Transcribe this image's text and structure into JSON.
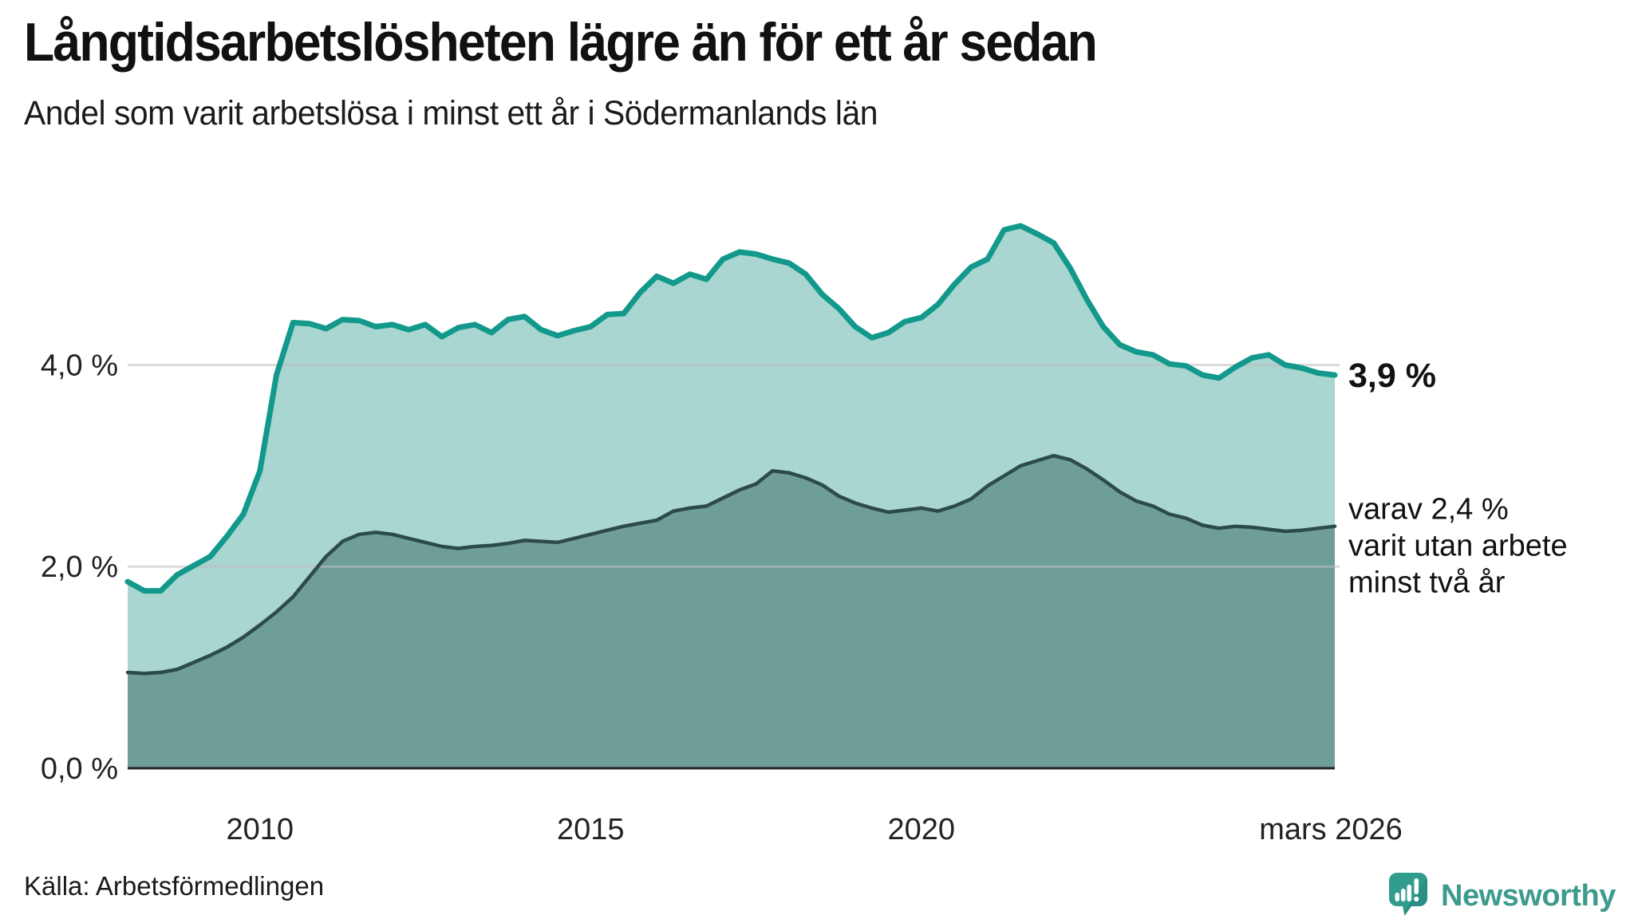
{
  "title": "Långtidsarbetslösheten lägre än för ett år sedan",
  "subtitle": "Andel som varit arbetslösa i minst ett år i Södermanlands län",
  "source": "Källa: Arbetsförmedlingen",
  "branding": {
    "name": "Newsworthy",
    "color": "#3c9b8d",
    "icon": "newsworthy-speech-bubble-bar-chart-icon"
  },
  "annotations": {
    "end_value_label": "3,9 %",
    "secondary_lines": [
      "varav 2,4 %",
      "varit utan arbete",
      "minst två år"
    ]
  },
  "colors": {
    "series1_line": "#12998b",
    "series1_fill": "#a9d6d0",
    "series2_line": "#2d4b48",
    "series2_fill": "#6f9e99",
    "gridline": "#bebebe",
    "axis": "#222222",
    "background": "#ffffff"
  },
  "chart_data": {
    "type": "area",
    "title": "Långtidsarbetslösheten lägre än för ett år sedan",
    "subtitle": "Andel som varit arbetslösa i minst ett år i Södermanlands län",
    "xlabel": "",
    "ylabel": "",
    "grid": "horizontal",
    "legend": "none",
    "xlim": [
      2008.0,
      2026.25
    ],
    "ylim": [
      0,
      5.8
    ],
    "x_unit": "year",
    "y_unit": "percent",
    "xticks": [
      {
        "v": 2010,
        "label": "2010"
      },
      {
        "v": 2015,
        "label": "2015"
      },
      {
        "v": 2020,
        "label": "2020"
      },
      {
        "v": 2026.19,
        "label": "mars 2026"
      }
    ],
    "yticks": [
      {
        "v": 0,
        "label": "0,0 %"
      },
      {
        "v": 2,
        "label": "2,0 %"
      },
      {
        "v": 4,
        "label": "4,0 %"
      }
    ],
    "x": [
      2008.0,
      2008.25,
      2008.5,
      2008.75,
      2009.0,
      2009.25,
      2009.5,
      2009.75,
      2010.0,
      2010.25,
      2010.5,
      2010.75,
      2011.0,
      2011.25,
      2011.5,
      2011.75,
      2012.0,
      2012.25,
      2012.5,
      2012.75,
      2013.0,
      2013.25,
      2013.5,
      2013.75,
      2014.0,
      2014.25,
      2014.5,
      2014.75,
      2015.0,
      2015.25,
      2015.5,
      2015.75,
      2016.0,
      2016.25,
      2016.5,
      2016.75,
      2017.0,
      2017.25,
      2017.5,
      2017.75,
      2018.0,
      2018.25,
      2018.5,
      2018.75,
      2019.0,
      2019.25,
      2019.5,
      2019.75,
      2020.0,
      2020.25,
      2020.5,
      2020.75,
      2021.0,
      2021.25,
      2021.5,
      2021.75,
      2022.0,
      2022.25,
      2022.5,
      2022.75,
      2023.0,
      2023.25,
      2023.5,
      2023.75,
      2024.0,
      2024.25,
      2024.5,
      2024.75,
      2025.0,
      2025.25,
      2025.5,
      2025.75,
      2026.0,
      2026.25
    ],
    "series": [
      {
        "name": "Andel som varit arbetslösa minst ett år",
        "latest_value_label": "3,9 %",
        "values": [
          1.85,
          1.76,
          1.76,
          1.92,
          2.01,
          2.1,
          2.3,
          2.52,
          2.95,
          3.9,
          4.42,
          4.41,
          4.36,
          4.45,
          4.44,
          4.38,
          4.4,
          4.35,
          4.4,
          4.28,
          4.37,
          4.4,
          4.32,
          4.45,
          4.48,
          4.35,
          4.29,
          4.34,
          4.38,
          4.5,
          4.51,
          4.72,
          4.88,
          4.81,
          4.9,
          4.85,
          5.05,
          5.12,
          5.1,
          5.05,
          5.01,
          4.9,
          4.7,
          4.56,
          4.38,
          4.27,
          4.32,
          4.43,
          4.47,
          4.6,
          4.8,
          4.97,
          5.05,
          5.34,
          5.38,
          5.3,
          5.21,
          4.96,
          4.65,
          4.38,
          4.2,
          4.13,
          4.1,
          4.01,
          3.99,
          3.9,
          3.87,
          3.98,
          4.07,
          4.1,
          4.0,
          3.97,
          3.92,
          3.9
        ]
      },
      {
        "name": "varav utan arbete minst två år",
        "latest_value_label": "varav 2,4 %",
        "values": [
          0.95,
          0.94,
          0.95,
          0.98,
          1.05,
          1.12,
          1.2,
          1.3,
          1.42,
          1.55,
          1.7,
          1.9,
          2.1,
          2.25,
          2.32,
          2.34,
          2.32,
          2.28,
          2.24,
          2.2,
          2.18,
          2.2,
          2.21,
          2.23,
          2.26,
          2.25,
          2.24,
          2.28,
          2.32,
          2.36,
          2.4,
          2.43,
          2.46,
          2.55,
          2.58,
          2.6,
          2.68,
          2.76,
          2.82,
          2.95,
          2.93,
          2.88,
          2.81,
          2.7,
          2.63,
          2.58,
          2.54,
          2.56,
          2.58,
          2.55,
          2.6,
          2.67,
          2.8,
          2.9,
          3.0,
          3.05,
          3.1,
          3.06,
          2.97,
          2.86,
          2.74,
          2.65,
          2.6,
          2.52,
          2.48,
          2.41,
          2.38,
          2.4,
          2.39,
          2.37,
          2.35,
          2.36,
          2.38,
          2.4
        ]
      }
    ]
  }
}
